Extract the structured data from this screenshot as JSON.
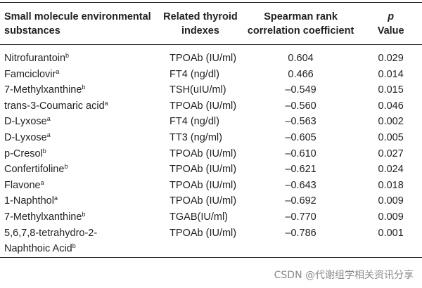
{
  "table": {
    "headers": {
      "col1": "Small molecule environmental substances",
      "col2": "Related thyroid indexes",
      "col3": "Spearman rank correlation coefficient",
      "col4_p": "p",
      "col4_value": "Value"
    },
    "rows": [
      {
        "substance": "Nitrofurantoin",
        "sup": "b",
        "index": "TPOAb (IU/ml)",
        "coef": "0.604",
        "p": "0.029"
      },
      {
        "substance": "Famciclovir",
        "sup": "a",
        "index": "FT4 (ng/dl)",
        "coef": "0.466",
        "p": "0.014"
      },
      {
        "substance": "7-Methylxanthine",
        "sup": "b",
        "index": "TSH(uIU/ml)",
        "coef": "–0.549",
        "p": "0.015"
      },
      {
        "substance": "trans-3-Coumaric acid",
        "sup": "a",
        "index": "TPOAb (IU/ml)",
        "coef": "–0.560",
        "p": "0.046"
      },
      {
        "substance": "D-Lyxose",
        "sup": "a",
        "index": "FT4 (ng/dl)",
        "coef": "–0.563",
        "p": "0.002"
      },
      {
        "substance": "D-Lyxose",
        "sup": "a",
        "index": "TT3 (ng/ml)",
        "coef": "–0.605",
        "p": "0.005"
      },
      {
        "substance": "p-Cresol",
        "sup": "b",
        "index": "TPOAb (IU/ml)",
        "coef": "–0.610",
        "p": "0.027"
      },
      {
        "substance": "Confertifoline",
        "sup": "b",
        "index": "TPOAb (IU/ml)",
        "coef": "–0.621",
        "p": "0.024"
      },
      {
        "substance": "Flavone",
        "sup": "a",
        "index": "TPOAb (IU/ml)",
        "coef": "–0.643",
        "p": "0.018"
      },
      {
        "substance": "1-Naphthol",
        "sup": "a",
        "index": "TPOAb (IU/ml)",
        "coef": "–0.692",
        "p": "0.009"
      },
      {
        "substance": "7-Methylxanthine",
        "sup": "b",
        "index": "TGAB(IU/ml)",
        "coef": "–0.770",
        "p": "0.009"
      },
      {
        "substance": "5,6,7,8-tetrahydro-2-",
        "substance_line2": "Naphthoic Acid",
        "sup": "b",
        "index": "TPOAb (IU/ml)",
        "coef": "–0.786",
        "p": "0.001"
      }
    ]
  },
  "watermark": "CSDN @代谢组学相关资讯分享"
}
